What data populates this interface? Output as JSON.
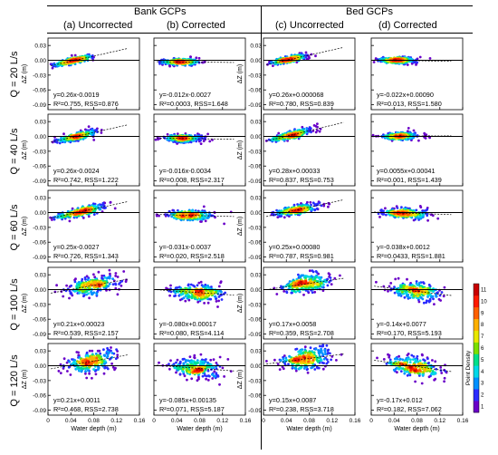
{
  "header": {
    "groups": [
      "Bank GCPs",
      "Bed GCPs"
    ],
    "columns": [
      "(a) Uncorrected",
      "(b) Corrected",
      "(c) Uncorrected",
      "(d) Corrected"
    ]
  },
  "rows": [
    {
      "label": "Q = 20 L/s"
    },
    {
      "label": "Q = 40 L/s"
    },
    {
      "label": "Q = 60 L/s"
    },
    {
      "label": "Q = 100 L/s"
    },
    {
      "label": "Q = 120 L/s"
    }
  ],
  "chart_data": {
    "type": "scatter",
    "xlabel": "Water depth (m)",
    "ylabel": "ΔZ (m)",
    "xticks": [
      "0",
      "0.04",
      "0.08",
      "0.12",
      "0.16"
    ],
    "yticks": [
      "0.03",
      "0.00",
      "-0.03",
      "-0.06",
      "-0.09"
    ],
    "xlim": [
      0,
      0.16
    ],
    "ylim": [
      -0.1,
      0.045
    ],
    "colorbar": {
      "label": "Point Density",
      "ticks": [
        "1",
        "2",
        "3",
        "4",
        "5",
        "6",
        "7",
        "8",
        "9",
        "10",
        "11"
      ],
      "colors": [
        "#6a00c8",
        "#2b2bff",
        "#0090ff",
        "#00d8e8",
        "#00e08a",
        "#7ae000",
        "#e8e800",
        "#ffb000",
        "#ff6000",
        "#ff1a00",
        "#c80000"
      ]
    },
    "panels": [
      {
        "row": 0,
        "col": 0,
        "eq": "y=0.26x-0.0019",
        "stats": "R²=0.755, RSS=0.876",
        "slope": 0.26,
        "intercept": -0.0019
      },
      {
        "row": 0,
        "col": 1,
        "eq": "y=-0.012x-0.0027",
        "stats": "R²=0.0003, RSS=1.648",
        "slope": -0.012,
        "intercept": -0.0027
      },
      {
        "row": 0,
        "col": 2,
        "eq": "y=0.26x+0.000068",
        "stats": "R²=0.780, RSS=0.839",
        "slope": 0.26,
        "intercept": 6.8e-05
      },
      {
        "row": 0,
        "col": 3,
        "eq": "y=-0.022x+0.00090",
        "stats": "R²=0.013, RSS=1.580",
        "slope": -0.022,
        "intercept": 0.0009
      },
      {
        "row": 1,
        "col": 0,
        "eq": "y=0.26x-0.0024",
        "stats": "R²=0.742, RSS=1.222",
        "slope": 0.26,
        "intercept": -0.0024
      },
      {
        "row": 1,
        "col": 1,
        "eq": "y=-0.016x-0.0034",
        "stats": "R²=0.008, RSS=2.317",
        "slope": -0.016,
        "intercept": -0.0034
      },
      {
        "row": 1,
        "col": 2,
        "eq": "y=0.28x+0.00033",
        "stats": "R²=0.837, RSS=0.753",
        "slope": 0.28,
        "intercept": 0.00033
      },
      {
        "row": 1,
        "col": 3,
        "eq": "y=0.0055x+0.00041",
        "stats": "R²=0.001, RSS=1.439",
        "slope": 0.0055,
        "intercept": 0.00041
      },
      {
        "row": 2,
        "col": 0,
        "eq": "y=0.25x-0.0027",
        "stats": "R²=0.726, RSS=1.343",
        "slope": 0.25,
        "intercept": -0.0027
      },
      {
        "row": 2,
        "col": 1,
        "eq": "y=-0.031x-0.0037",
        "stats": "R²=0.020, RSS=2.518",
        "slope": -0.031,
        "intercept": -0.0037
      },
      {
        "row": 2,
        "col": 2,
        "eq": "y=0.25x+0.00080",
        "stats": "R²=0.787, RSS=0.981",
        "slope": 0.25,
        "intercept": 0.0008
      },
      {
        "row": 2,
        "col": 3,
        "eq": "y=-0.038x+0.0012",
        "stats": "R²=0.0433, RSS=1.881",
        "slope": -0.038,
        "intercept": 0.0012
      },
      {
        "row": 3,
        "col": 0,
        "eq": "y=0.21x+0.00023",
        "stats": "R²=0.539, RSS=2.157",
        "slope": 0.21,
        "intercept": 0.00023
      },
      {
        "row": 3,
        "col": 1,
        "eq": "y=-0.080x+0.00017",
        "stats": "R²=0.080, RSS=4.114",
        "slope": -0.08,
        "intercept": 0.00017
      },
      {
        "row": 3,
        "col": 2,
        "eq": "y=0.17x+0.0058",
        "stats": "R²=0.359, RSS=2.708",
        "slope": 0.17,
        "intercept": 0.0058
      },
      {
        "row": 3,
        "col": 3,
        "eq": "y=-0.14x+0.0077",
        "stats": "R²=0.170, RSS=5.193",
        "slope": -0.14,
        "intercept": 0.0077
      },
      {
        "row": 4,
        "col": 0,
        "eq": "y=0.21x+0.0011",
        "stats": "R²=0.468, RSS=2.738",
        "slope": 0.21,
        "intercept": 0.0011
      },
      {
        "row": 4,
        "col": 1,
        "eq": "y=-0.085x+0.00135",
        "stats": "R²=0.071, RSS=5.187",
        "slope": -0.085,
        "intercept": 0.00135
      },
      {
        "row": 4,
        "col": 2,
        "eq": "y=0.15x+0.0087",
        "stats": "R²=0.238, RSS=3.718",
        "slope": 0.15,
        "intercept": 0.0087
      },
      {
        "row": 4,
        "col": 3,
        "eq": "y=-0.17x+0.012",
        "stats": "R²=0.182, RSS=7.062",
        "slope": -0.17,
        "intercept": 0.012
      }
    ]
  }
}
